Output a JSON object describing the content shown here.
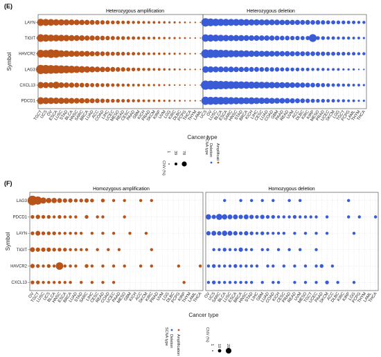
{
  "chart_data": [
    {
      "panel": "(E)",
      "type": "scatter",
      "subtype": "dot-matrix",
      "xlabel": "Cancer type",
      "ylabel": "Symbol",
      "facets": [
        {
          "title": "Heterozygous amplification",
          "color": "#b8541a",
          "categories": [
            "TGCT",
            "UCS",
            "OV",
            "ESCA",
            "LUSC",
            "STAD",
            "BLCA",
            "HNSC",
            "SARC",
            "BRCA",
            "LUAD",
            "ACC",
            "COAD",
            "LIHC",
            "UCEC",
            "MESO",
            "READ",
            "CESC",
            "PAAD",
            "GBM",
            "KICH",
            "PRAD",
            "SKCM",
            "KIRP",
            "UVM",
            "LGG",
            "KIRC",
            "DLBC",
            "PCPG",
            "THCA",
            "THYM",
            "LAML"
          ]
        },
        {
          "title": "Heterozygous deletion",
          "color": "#3a5bd6",
          "categories": [
            "UCS",
            "OV",
            "LUSC",
            "BLCA",
            "ESCA",
            "SARC",
            "HNSC",
            "STAD",
            "BRCA",
            "KICH",
            "LIHC",
            "CESC",
            "LUAD",
            "COAD",
            "GBM",
            "PAAD",
            "READ",
            "UVM",
            "ACC",
            "DLBC",
            "KIRC",
            "KIRP",
            "MESO",
            "PRAD",
            "UCEC",
            "SKCM",
            "LGG",
            "TGCT",
            "PCPG",
            "LAML",
            "THYM",
            "THCA"
          ]
        }
      ],
      "genes": [
        "LAYN",
        "TIGIT",
        "HAVCR2",
        "LAG3",
        "CXCL13",
        "PDCD1"
      ],
      "size_legend": {
        "title": "CNV (%)",
        "values": [
          "1",
          "39",
          "78"
        ]
      },
      "color_legend": {
        "title": "SCNA type",
        "entries": [
          {
            "label": "Deletion",
            "color": "#3a5bd6"
          },
          {
            "label": "Amplificati",
            "color": "#b8541a"
          }
        ]
      },
      "values": [
        [
          [
            44,
            40,
            38,
            34,
            32,
            30,
            28,
            26,
            24,
            22,
            20,
            18,
            16,
            14,
            12,
            12,
            10,
            10,
            8,
            8,
            7,
            6,
            6,
            5,
            5,
            4,
            4,
            3,
            3,
            2,
            2,
            1
          ],
          [
            60,
            50,
            46,
            44,
            42,
            40,
            40,
            38,
            36,
            32,
            32,
            30,
            30,
            28,
            26,
            24,
            24,
            22,
            22,
            20,
            20,
            18,
            18,
            16,
            14,
            14,
            12,
            12,
            10,
            10,
            8,
            8
          ]
        ],
        [
          [
            48,
            44,
            40,
            38,
            36,
            34,
            30,
            28,
            26,
            22,
            22,
            20,
            18,
            16,
            14,
            12,
            12,
            10,
            10,
            8,
            8,
            6,
            6,
            5,
            5,
            4,
            4,
            3,
            3,
            2,
            2,
            1
          ],
          [
            46,
            42,
            40,
            36,
            34,
            32,
            32,
            30,
            28,
            26,
            26,
            24,
            24,
            22,
            20,
            18,
            18,
            16,
            16,
            14,
            14,
            50,
            12,
            12,
            10,
            10,
            8,
            8,
            8,
            6,
            6,
            4
          ]
        ],
        [
          [
            50,
            46,
            60,
            54,
            40,
            36,
            32,
            30,
            28,
            26,
            22,
            20,
            18,
            16,
            14,
            14,
            12,
            10,
            10,
            8,
            8,
            6,
            6,
            5,
            5,
            4,
            4,
            3,
            3,
            2,
            2,
            1
          ],
          [
            62,
            60,
            56,
            50,
            48,
            44,
            42,
            40,
            38,
            34,
            32,
            30,
            30,
            28,
            26,
            24,
            24,
            22,
            20,
            20,
            18,
            18,
            16,
            16,
            14,
            14,
            12,
            12,
            10,
            10,
            8,
            8
          ]
        ],
        [
          [
            70,
            66,
            62,
            58,
            54,
            50,
            46,
            42,
            38,
            34,
            30,
            26,
            24,
            22,
            20,
            18,
            16,
            14,
            12,
            10,
            8,
            8,
            6,
            6,
            5,
            4,
            4,
            3,
            3,
            2,
            2,
            1
          ],
          [
            36,
            32,
            30,
            28,
            26,
            26,
            24,
            22,
            22,
            20,
            20,
            18,
            18,
            16,
            16,
            14,
            14,
            12,
            12,
            10,
            10,
            8,
            8,
            8,
            6,
            6,
            6,
            4,
            4,
            4,
            2,
            2
          ]
        ],
        [
          [
            34,
            30,
            28,
            40,
            26,
            24,
            22,
            20,
            18,
            16,
            14,
            14,
            12,
            12,
            10,
            10,
            8,
            8,
            6,
            6,
            5,
            5,
            4,
            4,
            3,
            3,
            2,
            2,
            2,
            1,
            1,
            1
          ],
          [
            70,
            66,
            62,
            58,
            54,
            50,
            48,
            46,
            44,
            42,
            40,
            38,
            36,
            34,
            32,
            30,
            28,
            26,
            24,
            22,
            20,
            18,
            16,
            14,
            12,
            10,
            10,
            8,
            8,
            6,
            6,
            4
          ]
        ],
        [
          [
            42,
            38,
            36,
            34,
            32,
            30,
            28,
            26,
            24,
            22,
            20,
            18,
            16,
            14,
            12,
            12,
            10,
            10,
            8,
            8,
            6,
            6,
            5,
            5,
            4,
            4,
            3,
            3,
            2,
            2,
            2,
            1
          ],
          [
            56,
            52,
            50,
            48,
            46,
            44,
            42,
            40,
            38,
            40,
            36,
            34,
            32,
            30,
            28,
            26,
            24,
            22,
            20,
            18,
            16,
            14,
            12,
            12,
            10,
            10,
            8,
            8,
            6,
            6,
            4,
            4
          ]
        ]
      ]
    },
    {
      "panel": "(F)",
      "type": "scatter",
      "subtype": "dot-matrix",
      "xlabel": "Cancer type",
      "ylabel": "Symbol",
      "facets": [
        {
          "title": "Homozygous amplification",
          "color": "#b8541a",
          "categories": [
            "OV",
            "TGCT",
            "LUSC",
            "UCS",
            "BLCA",
            "HNSC",
            "ESCA",
            "BRCA",
            "LUAD",
            "STAD",
            "SARC",
            "LIHC",
            "CESC",
            "READ",
            "COAD",
            "UCEC",
            "PAAD",
            "MESO",
            "GBM",
            "KICH",
            "ACC",
            "SKCM",
            "KIRC",
            "PRAD",
            "UVM",
            "LGG",
            "DLBC",
            "PCPG",
            "KIRP",
            "THYM",
            "LAML",
            "THCA"
          ]
        },
        {
          "title": "Homozygous deletion",
          "color": "#3a5bd6",
          "categories": [
            "OV",
            "UCS",
            "SARC",
            "BLCA",
            "LUSC",
            "ESCA",
            "BRCA",
            "HNSC",
            "STAD",
            "LIHC",
            "GBM",
            "LUAD",
            "COAD",
            "KICH",
            "CESC",
            "PRAD",
            "READ",
            "UVM",
            "MESO",
            "TGCT",
            "UCEC",
            "PAAD",
            "SKCM",
            "ACC",
            "DLBC",
            "KIRC",
            "KIRP",
            "LGG",
            "PCPG",
            "THYM",
            "LAML",
            "THCA"
          ]
        }
      ],
      "genes": [
        "LAG3",
        "PDCD1",
        "LAYN",
        "TIGIT",
        "HAVCR2",
        "CXCL13"
      ],
      "size_legend": {
        "title": "CNV (%)",
        "values": [
          "1",
          "10",
          "20"
        ]
      },
      "color_legend": {
        "title": "SCNA type",
        "entries": [
          {
            "label": "Deletion",
            "color": "#3a5bd6"
          },
          {
            "label": "Amplification",
            "color": "#b8541a"
          }
        ]
      },
      "values": [
        [
          [
            20,
            14,
            8,
            6,
            6,
            5,
            4,
            4,
            3,
            3,
            4,
            3,
            0,
            3,
            0,
            2,
            0,
            2,
            0,
            0,
            2,
            0,
            2,
            0,
            0,
            0,
            0,
            0,
            0,
            0,
            0,
            0
          ],
          [
            0,
            0,
            0,
            2,
            0,
            0,
            2,
            0,
            2,
            0,
            2,
            0,
            2,
            0,
            0,
            2,
            0,
            2,
            0,
            0,
            0,
            0,
            0,
            0,
            0,
            0,
            2,
            0,
            0,
            0,
            0,
            0
          ]
        ],
        [
          [
            3,
            4,
            3,
            3,
            2,
            3,
            2,
            2,
            2,
            0,
            3,
            0,
            2,
            2,
            0,
            0,
            0,
            2,
            0,
            0,
            0,
            0,
            0,
            0,
            0,
            0,
            0,
            0,
            0,
            0,
            0,
            0
          ],
          [
            6,
            4,
            8,
            6,
            5,
            5,
            4,
            5,
            4,
            3,
            4,
            3,
            3,
            2,
            2,
            2,
            3,
            2,
            2,
            2,
            2,
            0,
            2,
            0,
            0,
            0,
            2,
            0,
            2,
            0,
            0,
            2
          ]
        ],
        [
          [
            3,
            5,
            3,
            3,
            3,
            2,
            2,
            2,
            2,
            2,
            0,
            2,
            0,
            2,
            0,
            2,
            0,
            0,
            2,
            0,
            0,
            2,
            0,
            0,
            0,
            0,
            0,
            0,
            0,
            0,
            0,
            0
          ],
          [
            4,
            5,
            4,
            6,
            5,
            4,
            3,
            4,
            3,
            2,
            3,
            2,
            2,
            2,
            2,
            0,
            2,
            0,
            2,
            0,
            2,
            0,
            2,
            0,
            0,
            0,
            0,
            2,
            0,
            0,
            0,
            0
          ]
        ],
        [
          [
            5,
            4,
            4,
            4,
            3,
            3,
            3,
            2,
            2,
            2,
            2,
            0,
            2,
            0,
            2,
            0,
            2,
            0,
            0,
            0,
            0,
            0,
            2,
            0,
            0,
            0,
            0,
            0,
            0,
            0,
            0,
            0
          ],
          [
            0,
            2,
            2,
            3,
            2,
            2,
            4,
            2,
            2,
            0,
            2,
            2,
            0,
            2,
            0,
            2,
            0,
            2,
            0,
            0,
            2,
            0,
            0,
            0,
            0,
            0,
            0,
            0,
            0,
            0,
            0,
            0
          ]
        ],
        [
          [
            4,
            3,
            2,
            3,
            2,
            12,
            2,
            2,
            2,
            0,
            3,
            2,
            0,
            2,
            0,
            2,
            0,
            2,
            0,
            0,
            2,
            0,
            2,
            0,
            0,
            0,
            0,
            2,
            0,
            0,
            0,
            2
          ],
          [
            2,
            3,
            2,
            2,
            2,
            3,
            2,
            2,
            2,
            2,
            0,
            2,
            2,
            0,
            2,
            0,
            2,
            0,
            2,
            0,
            2,
            3,
            0,
            2,
            0,
            0,
            0,
            0,
            0,
            0,
            0,
            0
          ]
        ],
        [
          [
            3,
            3,
            2,
            2,
            2,
            2,
            2,
            2,
            0,
            2,
            0,
            2,
            0,
            2,
            0,
            2,
            0,
            0,
            0,
            0,
            0,
            0,
            0,
            0,
            0,
            0,
            0,
            0,
            2,
            0,
            0,
            0
          ],
          [
            2,
            3,
            2,
            2,
            2,
            2,
            2,
            2,
            2,
            0,
            2,
            0,
            2,
            2,
            0,
            0,
            2,
            0,
            2,
            0,
            2,
            0,
            3,
            0,
            2,
            0,
            0,
            2,
            0,
            0,
            0,
            0
          ]
        ]
      ]
    }
  ]
}
